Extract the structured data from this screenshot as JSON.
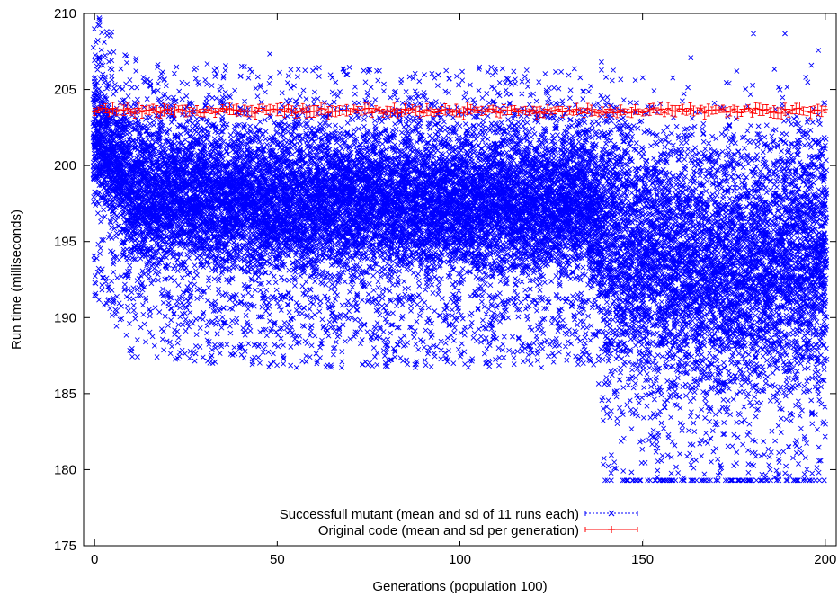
{
  "chart_data": {
    "type": "scatter",
    "title": "",
    "xlabel": "Generations (population 100)",
    "ylabel": "Run time (milliseconds)",
    "xlim": [
      -3,
      203
    ],
    "ylim": [
      175,
      210
    ],
    "xticks": [
      0,
      50,
      100,
      150,
      200
    ],
    "yticks": [
      175,
      180,
      185,
      190,
      195,
      200,
      205,
      210
    ],
    "grid": false,
    "legend_position": "bottom-center",
    "series": [
      {
        "name": "Successfull mutant (mean and sd of 11 runs each)",
        "color": "#0000ff",
        "marker": "x",
        "points_per_generation": 100,
        "generations": [
          0,
          200
        ],
        "mean_profile": [
          {
            "x": 0,
            "y": 202.0
          },
          {
            "x": 5,
            "y": 200.5
          },
          {
            "x": 10,
            "y": 198.2
          },
          {
            "x": 25,
            "y": 197.8
          },
          {
            "x": 50,
            "y": 197.5
          },
          {
            "x": 100,
            "y": 197.5
          },
          {
            "x": 135,
            "y": 197.5
          },
          {
            "x": 140,
            "y": 195.5
          },
          {
            "x": 150,
            "y": 193.5
          },
          {
            "x": 175,
            "y": 193.0
          },
          {
            "x": 200,
            "y": 194.0
          }
        ],
        "observed_range": {
          "min": 179.3,
          "max": 209.7
        }
      },
      {
        "name": "Original code (mean and sd per generation)",
        "color": "#ff0000",
        "marker": "+",
        "mean_level": 203.6,
        "sd": 0.3,
        "generations": [
          0,
          200
        ]
      }
    ]
  }
}
